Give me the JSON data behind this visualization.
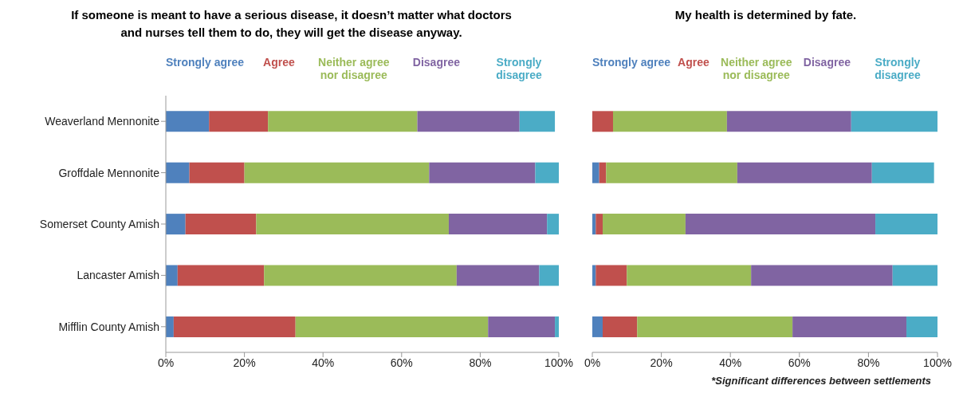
{
  "chart_data": [
    {
      "type": "bar",
      "orientation": "horizontal",
      "stacked": true,
      "title": "If someone is meant to have a serious disease, it doesn’t matter what doctors and nurses tell them to do, they will get the disease anyway.",
      "categories": [
        "Weaverland Mennonite",
        "Groffdale Mennonite",
        "Somerset County Amish",
        "Lancaster Amish",
        "Mifflin County Amish"
      ],
      "series": [
        {
          "name": "Strongly agree",
          "color": "#4f81bd",
          "values": [
            11,
            6,
            5,
            3,
            2
          ]
        },
        {
          "name": "Agree",
          "color": "#c0504d",
          "values": [
            15,
            14,
            18,
            22,
            31
          ]
        },
        {
          "name": "Neither agree nor disagree",
          "color": "#9bbb59",
          "values": [
            38,
            47,
            49,
            49,
            49
          ]
        },
        {
          "name": "Disagree",
          "color": "#8064a2",
          "values": [
            26,
            27,
            25,
            21,
            17
          ]
        },
        {
          "name": "Strongly disagree",
          "color": "#4bacc6",
          "values": [
            9,
            6,
            3,
            5,
            1
          ]
        }
      ],
      "xlim": [
        0,
        100
      ],
      "xticks": [
        {
          "value": 0,
          "label": "0%"
        },
        {
          "value": 20,
          "label": "20%"
        },
        {
          "value": 40,
          "label": "40%"
        },
        {
          "value": 60,
          "label": "60%"
        },
        {
          "value": 80,
          "label": "80%"
        },
        {
          "value": 100,
          "label": "100%"
        }
      ],
      "grid": false,
      "legend": "top"
    },
    {
      "type": "bar",
      "orientation": "horizontal",
      "stacked": true,
      "title": "My health is determined by fate.",
      "categories": [
        null,
        null,
        null,
        null,
        null
      ],
      "series": [
        {
          "name": "Strongly agree",
          "color": "#4f81bd",
          "values": [
            0,
            2,
            1,
            1,
            3
          ]
        },
        {
          "name": "Agree",
          "color": "#c0504d",
          "values": [
            6,
            2,
            2,
            9,
            10
          ]
        },
        {
          "name": "Neither agree nor disagree",
          "color": "#9bbb59",
          "values": [
            33,
            38,
            24,
            36,
            45
          ]
        },
        {
          "name": "Disagree",
          "color": "#8064a2",
          "values": [
            36,
            39,
            55,
            41,
            33
          ]
        },
        {
          "name": "Strongly disagree",
          "color": "#4bacc6",
          "values": [
            25,
            18,
            18,
            13,
            9
          ]
        }
      ],
      "xlim": [
        0,
        100
      ],
      "xticks": [
        {
          "value": 0,
          "label": "0%"
        },
        {
          "value": 20,
          "label": "20%"
        },
        {
          "value": 40,
          "label": "40%"
        },
        {
          "value": 60,
          "label": "60%"
        },
        {
          "value": 80,
          "label": "80%"
        },
        {
          "value": 100,
          "label": "100%"
        }
      ],
      "tick_labels": "x",
      "grid": false,
      "legend": "top",
      "annotations": [
        "*Significant differences between settlements"
      ]
    }
  ]
}
